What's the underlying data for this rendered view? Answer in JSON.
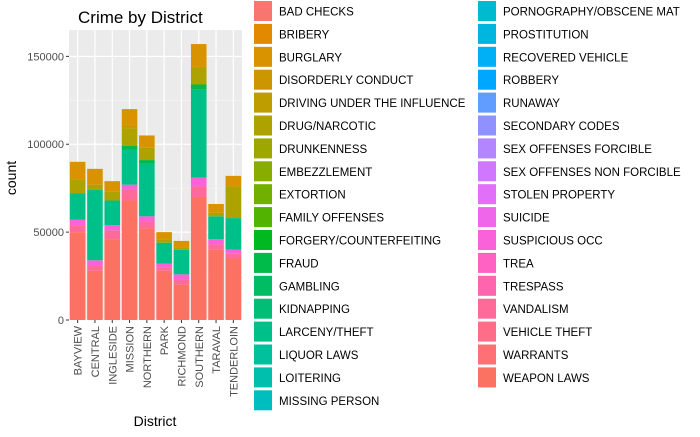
{
  "chart_data": {
    "type": "bar",
    "stacked": true,
    "title": "Crime by District",
    "xlabel": "District",
    "ylabel": "count",
    "ylim": [
      0,
      165000
    ],
    "yticks": [
      0,
      50000,
      100000,
      150000
    ],
    "ytick_labels": [
      "0",
      "50000",
      "100000",
      "150000"
    ],
    "categories": [
      "BAYVIEW",
      "CENTRAL",
      "INGLESIDE",
      "MISSION",
      "NORTHERN",
      "PARK",
      "RICHMOND",
      "SOUTHERN",
      "TARAVAL",
      "TENDERLOIN"
    ],
    "legend_position": "right",
    "legend_columns": 2,
    "panel_background": "#ebebeb",
    "grid": true,
    "series": [
      {
        "name": "BAD CHECKS",
        "color": "#F8766D",
        "values": [
          0,
          0,
          0,
          0,
          0,
          0,
          0,
          0,
          0,
          0
        ]
      },
      {
        "name": "BRIBERY",
        "color": "#E28900",
        "values": [
          0,
          0,
          0,
          0,
          0,
          0,
          0,
          0,
          0,
          0
        ]
      },
      {
        "name": "BURGLARY",
        "color": "#D99200",
        "values": [
          10000,
          9000,
          6000,
          9000,
          7000,
          4000,
          4000,
          13000,
          5000,
          6000
        ]
      },
      {
        "name": "DISORDERLY CONDUCT",
        "color": "#CC9600",
        "values": [
          0,
          0,
          0,
          2000,
          0,
          0,
          0,
          0,
          0,
          0
        ]
      },
      {
        "name": "DRIVING UNDER THE INFLUENCE",
        "color": "#BD9D00",
        "values": [
          0,
          0,
          0,
          0,
          0,
          0,
          0,
          0,
          0,
          0
        ]
      },
      {
        "name": "DRUG/NARCOTIC",
        "color": "#ADA200",
        "values": [
          8000,
          3000,
          5000,
          10000,
          7000,
          2000,
          1000,
          10000,
          2000,
          18000
        ]
      },
      {
        "name": "DRUNKENNESS",
        "color": "#9DA700",
        "values": [
          0,
          0,
          0,
          0,
          0,
          0,
          0,
          0,
          0,
          0
        ]
      },
      {
        "name": "EMBEZZLEMENT",
        "color": "#89AC00",
        "values": [
          0,
          0,
          0,
          0,
          0,
          0,
          0,
          0,
          0,
          0
        ]
      },
      {
        "name": "EXTORTION",
        "color": "#72B000",
        "values": [
          0,
          0,
          0,
          0,
          0,
          0,
          0,
          0,
          0,
          0
        ]
      },
      {
        "name": "FAMILY OFFENSES",
        "color": "#53B400",
        "values": [
          0,
          0,
          0,
          0,
          0,
          0,
          0,
          0,
          0,
          0
        ]
      },
      {
        "name": "FORGERY/COUNTERFEITING",
        "color": "#00B81F",
        "values": [
          0,
          0,
          0,
          0,
          0,
          0,
          0,
          0,
          0,
          0
        ]
      },
      {
        "name": "FRAUD",
        "color": "#00BA4A",
        "values": [
          0,
          0,
          0,
          2000,
          2000,
          0,
          0,
          3000,
          0,
          0
        ]
      },
      {
        "name": "GAMBLING",
        "color": "#00BC63",
        "values": [
          0,
          0,
          0,
          0,
          0,
          0,
          0,
          0,
          0,
          0
        ]
      },
      {
        "name": "KIDNAPPING",
        "color": "#00BE76",
        "values": [
          0,
          0,
          0,
          0,
          0,
          0,
          0,
          0,
          0,
          0
        ]
      },
      {
        "name": "LARCENY/THEFT",
        "color": "#00C089",
        "values": [
          15000,
          40000,
          14000,
          20000,
          30000,
          12000,
          14000,
          50000,
          13000,
          18000
        ]
      },
      {
        "name": "LIQUOR LAWS",
        "color": "#00C19C",
        "values": [
          0,
          0,
          0,
          0,
          0,
          0,
          0,
          0,
          0,
          0
        ]
      },
      {
        "name": "LOITERING",
        "color": "#00C0AD",
        "values": [
          0,
          0,
          0,
          0,
          0,
          0,
          0,
          0,
          0,
          0
        ]
      },
      {
        "name": "MISSING PERSON",
        "color": "#00BEBE",
        "values": [
          0,
          0,
          0,
          0,
          0,
          0,
          0,
          0,
          0,
          0
        ]
      },
      {
        "name": "PORNOGRAPHY/OBSCENE MAT",
        "color": "#00BBCF",
        "values": [
          0,
          0,
          0,
          0,
          0,
          0,
          0,
          0,
          0,
          0
        ]
      },
      {
        "name": "PROSTITUTION",
        "color": "#00B6DF",
        "values": [
          0,
          0,
          0,
          0,
          0,
          0,
          0,
          0,
          0,
          0
        ]
      },
      {
        "name": "RECOVERED VEHICLE",
        "color": "#00B0F6",
        "values": [
          0,
          0,
          0,
          0,
          0,
          0,
          0,
          0,
          0,
          0
        ]
      },
      {
        "name": "ROBBERY",
        "color": "#00A7FF",
        "values": [
          0,
          0,
          0,
          0,
          0,
          0,
          0,
          0,
          0,
          0
        ]
      },
      {
        "name": "RUNAWAY",
        "color": "#619CFF",
        "values": [
          0,
          0,
          0,
          0,
          0,
          0,
          0,
          0,
          0,
          0
        ]
      },
      {
        "name": "SECONDARY CODES",
        "color": "#8F91FF",
        "values": [
          0,
          0,
          0,
          0,
          0,
          0,
          0,
          0,
          0,
          0
        ]
      },
      {
        "name": "SEX OFFENSES FORCIBLE",
        "color": "#B385FF",
        "values": [
          0,
          0,
          0,
          0,
          0,
          0,
          0,
          0,
          0,
          0
        ]
      },
      {
        "name": "SEX OFFENSES NON FORCIBLE",
        "color": "#CF78FF",
        "values": [
          0,
          0,
          0,
          0,
          0,
          0,
          0,
          0,
          0,
          0
        ]
      },
      {
        "name": "STOLEN PROPERTY",
        "color": "#E26FF9",
        "values": [
          0,
          0,
          0,
          0,
          0,
          0,
          0,
          0,
          0,
          0
        ]
      },
      {
        "name": "SUICIDE",
        "color": "#F066EA",
        "values": [
          0,
          0,
          0,
          0,
          0,
          0,
          0,
          0,
          0,
          0
        ]
      },
      {
        "name": "SUSPICIOUS OCC",
        "color": "#FA62D9",
        "values": [
          3000,
          3000,
          3000,
          3000,
          3000,
          2000,
          3000,
          5000,
          3000,
          2000
        ]
      },
      {
        "name": "TREA",
        "color": "#FF62C3",
        "values": [
          0,
          0,
          0,
          0,
          0,
          0,
          0,
          0,
          0,
          0
        ]
      },
      {
        "name": "TRESPASS",
        "color": "#FF65AE",
        "values": [
          0,
          0,
          0,
          0,
          0,
          0,
          0,
          0,
          0,
          0
        ]
      },
      {
        "name": "VANDALISM",
        "color": "#FF6A98",
        "values": [
          4000,
          3000,
          5000,
          6000,
          4000,
          2000,
          3000,
          6000,
          3000,
          3000
        ]
      },
      {
        "name": "VEHICLE THEFT",
        "color": "#FF6D87",
        "values": [
          0,
          0,
          0,
          0,
          0,
          0,
          0,
          0,
          0,
          0
        ]
      },
      {
        "name": "WARRANTS",
        "color": "#FD7175",
        "values": [
          0,
          0,
          0,
          0,
          0,
          0,
          0,
          0,
          0,
          0
        ]
      },
      {
        "name": "WEAPON LAWS",
        "color": "#FB7162",
        "values": [
          50000,
          28000,
          46000,
          68000,
          52000,
          28000,
          20000,
          70000,
          40000,
          35000
        ]
      }
    ]
  }
}
